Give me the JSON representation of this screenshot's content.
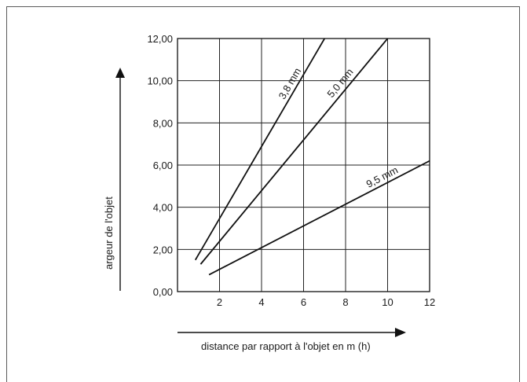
{
  "chart_data": {
    "type": "line",
    "xlabel": "distance par rapport à l'objet en m (h)",
    "ylabel": "argeur de l'objet",
    "xlim": [
      0,
      12
    ],
    "ylim": [
      0,
      12
    ],
    "x_ticks": [
      "2",
      "4",
      "6",
      "8",
      "10",
      "12"
    ],
    "y_ticks": [
      "0,00",
      "2,00",
      "4,00",
      "6,00",
      "8,00",
      "10,00",
      "12,00"
    ],
    "grid": true,
    "series": [
      {
        "name": "3,8 mm",
        "points": [
          [
            0.85,
            1.5
          ],
          [
            7.0,
            12.0
          ]
        ]
      },
      {
        "name": "5,0 mm",
        "points": [
          [
            1.1,
            1.3
          ],
          [
            10.0,
            12.0
          ]
        ]
      },
      {
        "name": "9,5 mm",
        "points": [
          [
            1.5,
            0.8
          ],
          [
            12.0,
            6.2
          ]
        ]
      }
    ]
  }
}
